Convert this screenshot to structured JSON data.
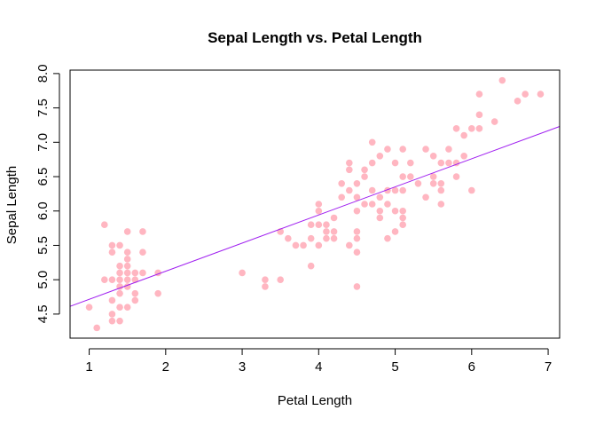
{
  "chart_data": {
    "type": "scatter",
    "title": "Sepal Length vs. Petal Length",
    "xlabel": "Petal Length",
    "ylabel": "Sepal Length",
    "xlim": [
      0.75,
      7.15
    ],
    "ylim": [
      4.15,
      8.05
    ],
    "xticks": [
      "1",
      "2",
      "3",
      "4",
      "5",
      "6",
      "7"
    ],
    "xtick_values": [
      1,
      2,
      3,
      4,
      5,
      6,
      7
    ],
    "yticks": [
      "4.5",
      "5.0",
      "5.5",
      "6.0",
      "6.5",
      "7.0",
      "7.5",
      "8.0"
    ],
    "ytick_values": [
      4.5,
      5.0,
      5.5,
      6.0,
      6.5,
      7.0,
      7.5,
      8.0
    ],
    "grid": false,
    "point_color": "#ffb6c1",
    "line_color": "#a020f0",
    "regression_line": {
      "intercept": 4.306,
      "slope": 0.409
    },
    "points": [
      [
        1.0,
        4.6
      ],
      [
        1.1,
        4.3
      ],
      [
        1.2,
        5.0
      ],
      [
        1.2,
        5.8
      ],
      [
        1.3,
        4.4
      ],
      [
        1.3,
        4.5
      ],
      [
        1.3,
        4.7
      ],
      [
        1.3,
        5.0
      ],
      [
        1.3,
        5.4
      ],
      [
        1.3,
        5.5
      ],
      [
        1.4,
        4.4
      ],
      [
        1.4,
        4.6
      ],
      [
        1.4,
        4.8
      ],
      [
        1.4,
        4.9
      ],
      [
        1.4,
        5.0
      ],
      [
        1.4,
        5.1
      ],
      [
        1.4,
        5.2
      ],
      [
        1.4,
        5.5
      ],
      [
        1.5,
        4.6
      ],
      [
        1.5,
        4.9
      ],
      [
        1.5,
        5.0
      ],
      [
        1.5,
        5.1
      ],
      [
        1.5,
        5.2
      ],
      [
        1.5,
        5.3
      ],
      [
        1.5,
        5.4
      ],
      [
        1.5,
        5.7
      ],
      [
        1.6,
        4.7
      ],
      [
        1.6,
        4.8
      ],
      [
        1.6,
        5.0
      ],
      [
        1.6,
        5.1
      ],
      [
        1.7,
        5.1
      ],
      [
        1.7,
        5.4
      ],
      [
        1.7,
        5.7
      ],
      [
        1.9,
        4.8
      ],
      [
        1.9,
        5.1
      ],
      [
        3.0,
        5.1
      ],
      [
        3.3,
        4.9
      ],
      [
        3.3,
        5.0
      ],
      [
        3.5,
        5.0
      ],
      [
        3.5,
        5.7
      ],
      [
        3.6,
        5.6
      ],
      [
        3.7,
        5.5
      ],
      [
        3.8,
        5.5
      ],
      [
        3.9,
        5.2
      ],
      [
        3.9,
        5.6
      ],
      [
        3.9,
        5.8
      ],
      [
        4.0,
        5.5
      ],
      [
        4.0,
        5.8
      ],
      [
        4.0,
        6.0
      ],
      [
        4.0,
        6.1
      ],
      [
        4.1,
        5.6
      ],
      [
        4.1,
        5.7
      ],
      [
        4.1,
        5.8
      ],
      [
        4.2,
        5.6
      ],
      [
        4.2,
        5.7
      ],
      [
        4.2,
        5.9
      ],
      [
        4.3,
        6.2
      ],
      [
        4.3,
        6.4
      ],
      [
        4.4,
        5.5
      ],
      [
        4.4,
        6.3
      ],
      [
        4.4,
        6.6
      ],
      [
        4.4,
        6.7
      ],
      [
        4.5,
        4.9
      ],
      [
        4.5,
        5.4
      ],
      [
        4.5,
        5.6
      ],
      [
        4.5,
        5.7
      ],
      [
        4.5,
        6.0
      ],
      [
        4.5,
        6.2
      ],
      [
        4.5,
        6.4
      ],
      [
        4.6,
        6.1
      ],
      [
        4.6,
        6.5
      ],
      [
        4.6,
        6.6
      ],
      [
        4.7,
        6.1
      ],
      [
        4.7,
        6.3
      ],
      [
        4.7,
        6.7
      ],
      [
        4.7,
        7.0
      ],
      [
        4.8,
        5.9
      ],
      [
        4.8,
        6.0
      ],
      [
        4.8,
        6.2
      ],
      [
        4.8,
        6.8
      ],
      [
        4.9,
        5.6
      ],
      [
        4.9,
        6.1
      ],
      [
        4.9,
        6.3
      ],
      [
        4.9,
        6.9
      ],
      [
        5.0,
        5.7
      ],
      [
        5.0,
        6.0
      ],
      [
        5.0,
        6.3
      ],
      [
        5.0,
        6.7
      ],
      [
        5.1,
        5.8
      ],
      [
        5.1,
        5.9
      ],
      [
        5.1,
        6.0
      ],
      [
        5.1,
        6.3
      ],
      [
        5.1,
        6.5
      ],
      [
        5.1,
        6.9
      ],
      [
        5.2,
        6.5
      ],
      [
        5.2,
        6.7
      ],
      [
        5.3,
        6.4
      ],
      [
        5.4,
        6.2
      ],
      [
        5.4,
        6.9
      ],
      [
        5.5,
        6.4
      ],
      [
        5.5,
        6.5
      ],
      [
        5.5,
        6.8
      ],
      [
        5.6,
        6.1
      ],
      [
        5.6,
        6.3
      ],
      [
        5.6,
        6.4
      ],
      [
        5.6,
        6.7
      ],
      [
        5.7,
        6.7
      ],
      [
        5.7,
        6.9
      ],
      [
        5.8,
        6.5
      ],
      [
        5.8,
        6.7
      ],
      [
        5.8,
        7.2
      ],
      [
        5.9,
        6.8
      ],
      [
        5.9,
        7.1
      ],
      [
        6.0,
        6.3
      ],
      [
        6.0,
        7.2
      ],
      [
        6.1,
        7.2
      ],
      [
        6.1,
        7.4
      ],
      [
        6.1,
        7.7
      ],
      [
        6.3,
        7.3
      ],
      [
        6.4,
        7.9
      ],
      [
        6.6,
        7.6
      ],
      [
        6.7,
        7.7
      ],
      [
        6.9,
        7.7
      ]
    ]
  }
}
